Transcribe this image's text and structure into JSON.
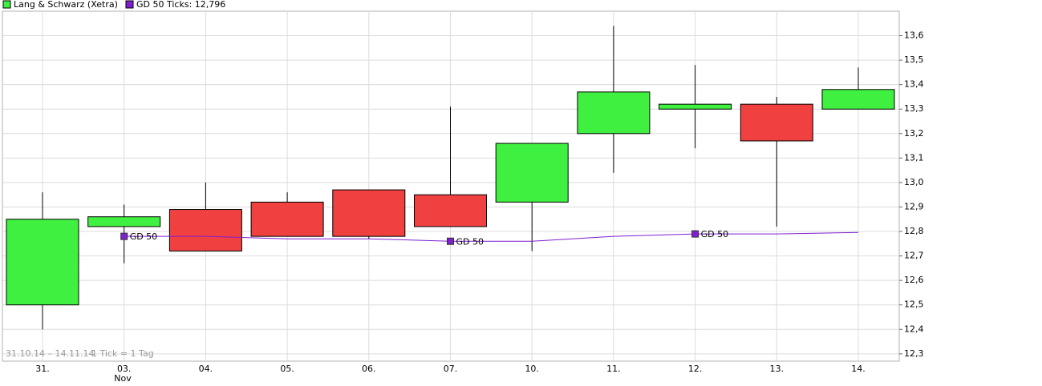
{
  "chart_data": {
    "type": "candlestick",
    "categories": [
      "31.",
      "03.",
      "04.",
      "05.",
      "06.",
      "07.",
      "10.",
      "11.",
      "12.",
      "13.",
      "14."
    ],
    "month_label": "Nov",
    "open": [
      12.5,
      12.82,
      12.89,
      12.92,
      12.97,
      12.95,
      12.92,
      13.2,
      13.3,
      13.32,
      13.3
    ],
    "high": [
      12.96,
      12.91,
      13.0,
      12.96,
      12.97,
      13.31,
      13.16,
      13.64,
      13.48,
      13.35,
      13.47
    ],
    "low": [
      12.4,
      12.67,
      12.72,
      12.78,
      12.77,
      12.82,
      12.72,
      13.04,
      13.14,
      12.82,
      13.3
    ],
    "close": [
      12.85,
      12.86,
      12.72,
      12.78,
      12.78,
      12.82,
      13.16,
      13.37,
      13.32,
      13.17,
      13.38
    ],
    "name": "Lang & Schwarz (Xetra)",
    "up_color": "#40f040",
    "down_color": "#f04040",
    "series": [
      {
        "name": "GD 50 Ticks: 12,796",
        "color": "#7f1fd0",
        "values": [
          null,
          12.78,
          12.78,
          12.77,
          12.77,
          12.76,
          12.76,
          12.78,
          12.79,
          12.79,
          12.796
        ]
      }
    ],
    "annotations": [
      {
        "text": "GD 50",
        "x": "03."
      },
      {
        "text": "GD 50",
        "x": "07."
      },
      {
        "text": "GD 50",
        "x": "12."
      }
    ],
    "footer": [
      "31.10.14 – 14.11.14",
      "1 Tick = 1 Tag"
    ],
    "ylim": [
      12.27,
      13.7
    ],
    "yticks": [
      {
        "value": 12.3,
        "label": "12,3"
      },
      {
        "value": 12.4,
        "label": "12,4"
      },
      {
        "value": 12.5,
        "label": "12,5"
      },
      {
        "value": 12.6,
        "label": "12,6"
      },
      {
        "value": 12.7,
        "label": "12,7"
      },
      {
        "value": 12.8,
        "label": "12,8"
      },
      {
        "value": 12.9,
        "label": "12,9"
      },
      {
        "value": 13.0,
        "label": "13,0"
      },
      {
        "value": 13.1,
        "label": "13,1"
      },
      {
        "value": 13.2,
        "label": "13,2"
      },
      {
        "value": 13.3,
        "label": "13,3"
      },
      {
        "value": 13.4,
        "label": "13,4"
      },
      {
        "value": 13.5,
        "label": "13,5"
      },
      {
        "value": 13.6,
        "label": "13,6"
      }
    ],
    "grid": true
  }
}
